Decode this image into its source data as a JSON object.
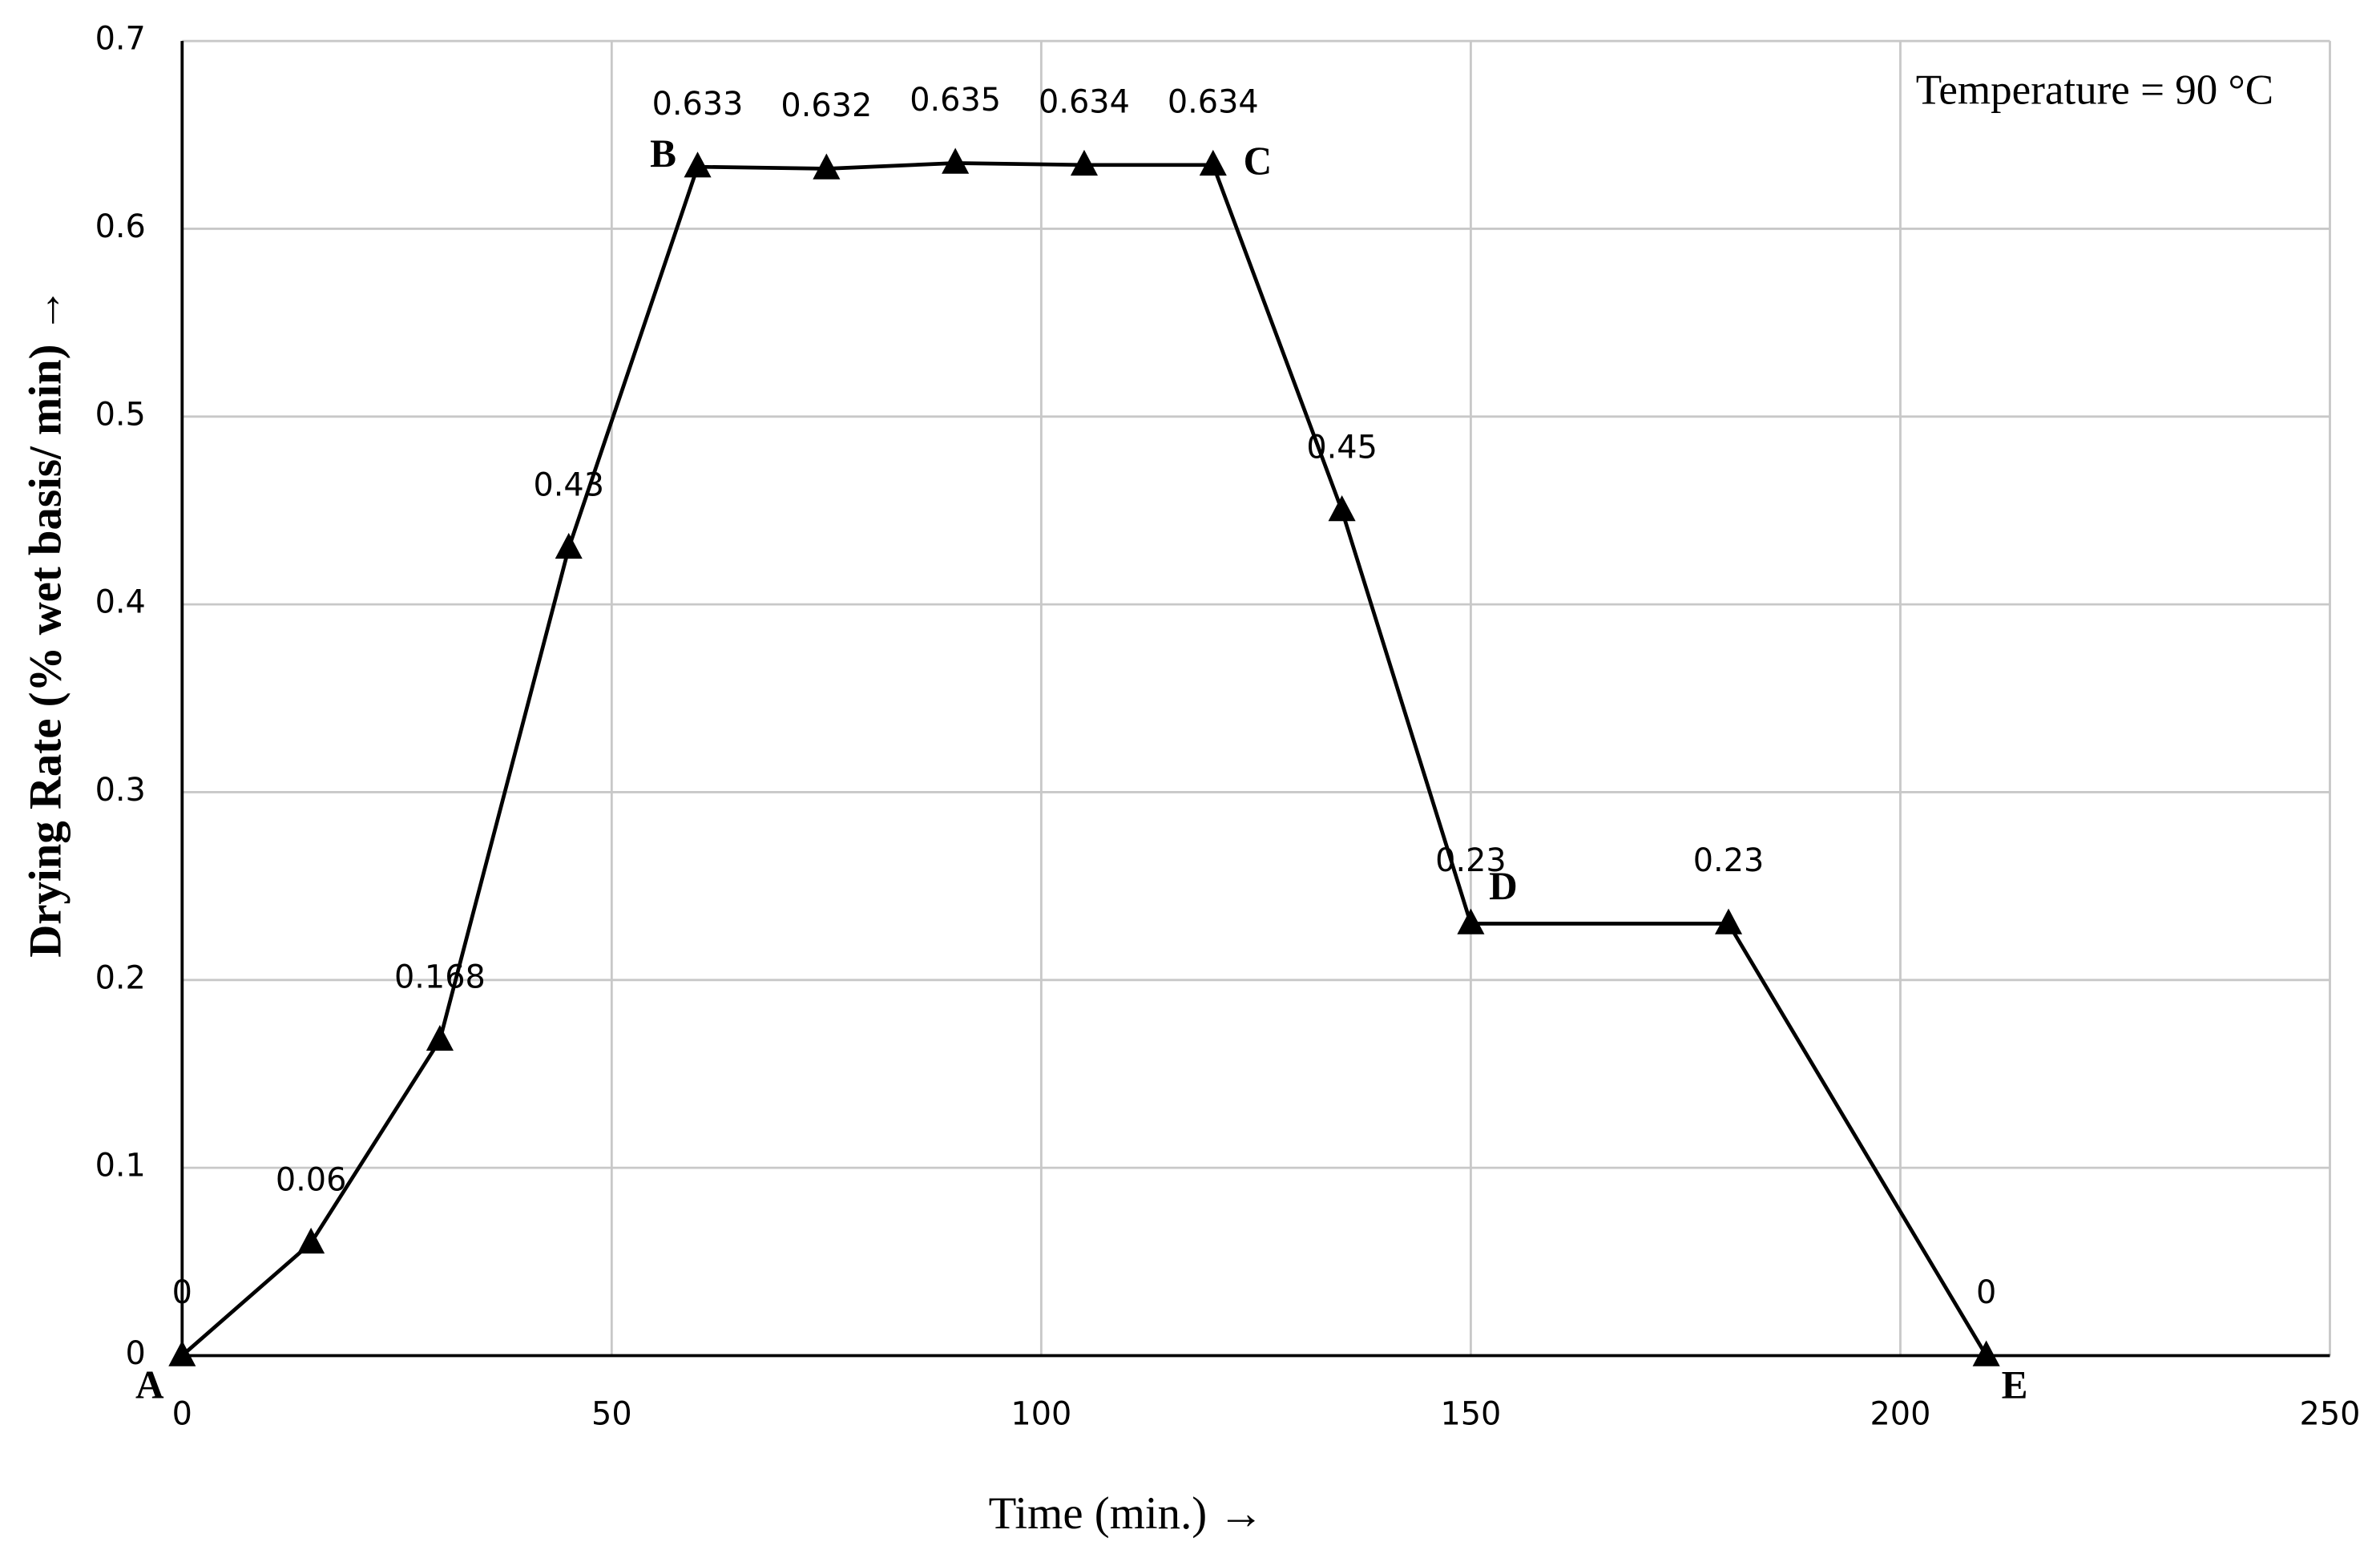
{
  "chart_data": {
    "type": "line",
    "xlabel": "Time (min.) →",
    "ylabel": "Drying Rate (% wet basis/ min) →",
    "annotation": "Temperature = 90 °C",
    "x": [
      0,
      15,
      30,
      45,
      60,
      75,
      90,
      105,
      120,
      135,
      150,
      180,
      210
    ],
    "series": [
      {
        "color": "#000000",
        "values": [
          0,
          0.06,
          0.168,
          0.43,
          0.633,
          0.632,
          0.635,
          0.634,
          0.634,
          0.45,
          0.23,
          0.23,
          0
        ]
      }
    ],
    "point_labels": [
      "A",
      null,
      null,
      null,
      "B",
      null,
      null,
      null,
      "C",
      null,
      "D",
      null,
      "E"
    ],
    "xlim": [
      0,
      250
    ],
    "xticks": [
      0,
      50,
      100,
      150,
      200,
      250
    ],
    "ylim": [
      0,
      0.7
    ],
    "yticks": [
      0,
      0.1,
      0.2,
      0.3,
      0.4,
      0.5,
      0.6,
      0.7
    ],
    "grid": true
  }
}
